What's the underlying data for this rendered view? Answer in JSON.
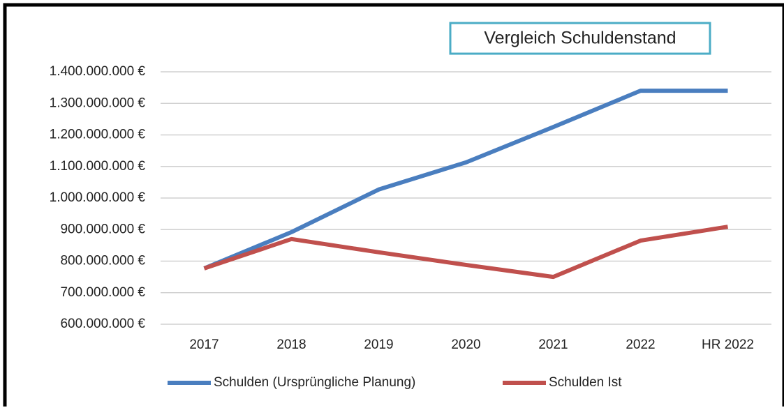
{
  "chart_data": {
    "type": "line",
    "title": "Vergleich Schuldenstand",
    "categories": [
      "2017",
      "2018",
      "2019",
      "2020",
      "2021",
      "2022",
      "HR 2022"
    ],
    "series": [
      {
        "name": "Schulden (Ursprüngliche Planung)",
        "color": "#4a7ebf",
        "values": [
          777000000,
          892000000,
          1027000000,
          1113000000,
          1225000000,
          1340000000,
          1340000000
        ]
      },
      {
        "name": "Schulden Ist",
        "color": "#c0504d",
        "values": [
          777000000,
          870000000,
          828000000,
          788000000,
          750000000,
          865000000,
          909000000
        ]
      }
    ],
    "ylim": [
      600000000,
      1400000000
    ],
    "yticks": [
      {
        "value": 600000000,
        "label": "600.000.000 €"
      },
      {
        "value": 700000000,
        "label": "700.000.000 €"
      },
      {
        "value": 800000000,
        "label": "800.000.000 €"
      },
      {
        "value": 900000000,
        "label": "900.000.000 €"
      },
      {
        "value": 1000000000,
        "label": "1.000.000.000 €"
      },
      {
        "value": 1100000000,
        "label": "1.100.000.000 €"
      },
      {
        "value": 1200000000,
        "label": "1.200.000.000 €"
      },
      {
        "value": 1300000000,
        "label": "1.300.000.000 €"
      },
      {
        "value": 1400000000,
        "label": "1.400.000.000 €"
      }
    ],
    "grid": true,
    "legend": "bottom"
  }
}
